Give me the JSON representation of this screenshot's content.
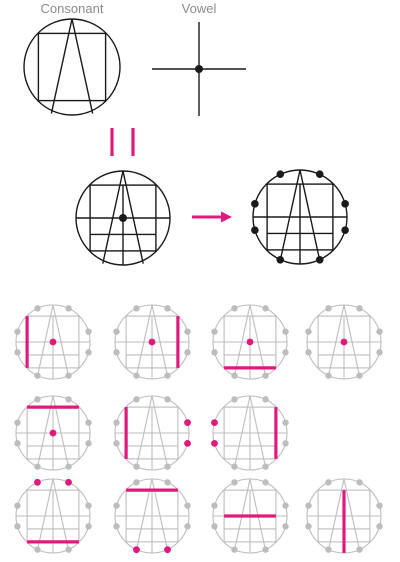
{
  "labels": {
    "consonant": "Consonant",
    "vowel": "Vowel"
  },
  "colors": {
    "line": "#1a1a1a",
    "grey": "#bdbdbd",
    "accent": "#e0197d",
    "label": "#8a8a8a"
  },
  "glyph_samples": [
    {
      "name": "glyph-1",
      "marks": [
        "left-bar",
        "center-dot"
      ]
    },
    {
      "name": "glyph-2",
      "marks": [
        "right-bar",
        "center-dot"
      ]
    },
    {
      "name": "glyph-3",
      "marks": [
        "bottom-bar",
        "center-dot"
      ]
    },
    {
      "name": "glyph-4",
      "marks": [
        "center-dot"
      ]
    },
    {
      "name": "glyph-5",
      "marks": [
        "top-bar",
        "center-dot"
      ]
    },
    {
      "name": "glyph-6",
      "marks": [
        "left-bar",
        "right-dots"
      ]
    },
    {
      "name": "glyph-7",
      "marks": [
        "right-bar",
        "left-dots"
      ]
    },
    {
      "name": "glyph-8",
      "marks": [
        "bottom-bar",
        "top-dots"
      ]
    },
    {
      "name": "glyph-9",
      "marks": [
        "top-bar",
        "bottom-dots"
      ]
    },
    {
      "name": "glyph-10",
      "marks": [
        "mid-horizontal-bar"
      ]
    },
    {
      "name": "glyph-11",
      "marks": [
        "mid-vertical-bar"
      ]
    }
  ]
}
